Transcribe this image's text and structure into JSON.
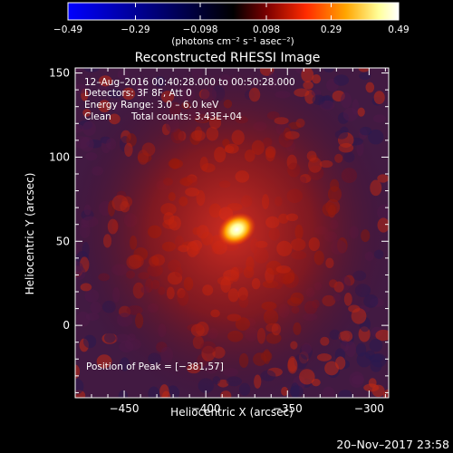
{
  "chart_data": {
    "type": "heatmap",
    "title": "Reconstructed RHESSI Image",
    "xlabel": "Heliocentric X (arcsec)",
    "ylabel": "Heliocentric Y (arcsec)",
    "xlim": [
      -480,
      -288
    ],
    "ylim": [
      -43,
      153
    ],
    "x_ticks": [
      -450,
      -400,
      -350,
      -300
    ],
    "y_ticks": [
      0,
      50,
      100,
      150
    ],
    "x_tick_labels": [
      "−450",
      "−400",
      "−350",
      "−300"
    ],
    "y_tick_labels": [
      "0",
      "50",
      "100",
      "150"
    ],
    "peak": {
      "x": -381,
      "y": 57
    },
    "colorbar": {
      "range": [
        -0.49,
        0.49
      ],
      "ticks": [
        -0.49,
        -0.29,
        -0.098,
        0.098,
        0.29,
        0.49
      ],
      "tick_labels": [
        "−0.49",
        "−0.29",
        "−0.098",
        "0.098",
        "0.29",
        "0.49"
      ],
      "units_label": "(photons cm⁻² s⁻¹ asec⁻²)",
      "colors": [
        "#0000ff",
        "#000000",
        "#7a0000",
        "#ff2a00",
        "#ffa500",
        "#ffff9a",
        "#ffffff"
      ]
    },
    "annotations": {
      "time_range": "12–Aug–2016 00:40:28.000 to 00:50:28.000",
      "detectors": "Detectors: 3F 8F, Att 0",
      "energy": "Energy Range: 3.0 – 6.0 keV",
      "clean": "Clean",
      "counts": "Total counts: 3.43E+04",
      "peak_position": "Position of Peak = [−381,57]"
    },
    "footer_date": "20–Nov–2017 23:58"
  }
}
